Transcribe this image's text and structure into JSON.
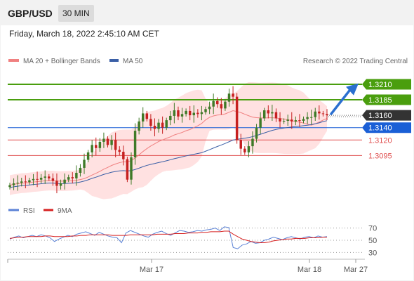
{
  "header": {
    "pair": "GBP/USD",
    "timeframe": "30 MIN"
  },
  "datetime": "Friday, March 18, 2022 2:45:10 AM CET",
  "legend": {
    "ma20": "MA 20 + Bollinger Bands",
    "ma50": "MA 50",
    "credit": "Research © 2022 Trading Central",
    "rsi": "RSI",
    "rsi_ma": "9MA"
  },
  "colors": {
    "resistance": "#4a9e0e",
    "current": "#333333",
    "ma50": "#3a5fa6",
    "pivot": "#1a5fd6",
    "support": "#e05050",
    "ma20": "#f08080",
    "band": "#ffdcdc",
    "arrow": "#2a6fd0",
    "candle_up": "#3f7a28",
    "candle_down": "#c62020",
    "rsi": "#5b82d6",
    "rsi_ma": "#d62020"
  },
  "chart_data": [
    {
      "type": "candlestick",
      "title": "GBP/USD",
      "timeframe": "30 MIN",
      "ylim": [
        1.3025,
        1.3235
      ],
      "x_ticks": [
        "Mar 17",
        "Mar 18",
        "Mar 27"
      ],
      "levels": [
        {
          "value": 1.321,
          "label": "1.3210",
          "kind": "resistance"
        },
        {
          "value": 1.3185,
          "label": "1.3185",
          "kind": "resistance"
        },
        {
          "value": 1.316,
          "label": "1.3160",
          "kind": "current"
        },
        {
          "value": 1.314,
          "label": "1.3140",
          "kind": "pivot"
        },
        {
          "value": 1.312,
          "label": "1.3120",
          "kind": "support"
        },
        {
          "value": 1.3095,
          "label": "1.3095",
          "kind": "support"
        }
      ],
      "closes": [
        1.3047,
        1.305,
        1.3051,
        1.3053,
        1.3052,
        1.3055,
        1.3057,
        1.3056,
        1.3059,
        1.3061,
        1.3058,
        1.3054,
        1.3046,
        1.305,
        1.3056,
        1.306,
        1.3058,
        1.3067,
        1.3075,
        1.3088,
        1.31,
        1.3112,
        1.3107,
        1.3117,
        1.3122,
        1.3112,
        1.312,
        1.3104,
        1.3101,
        1.3089,
        1.3056,
        1.3092,
        1.3135,
        1.315,
        1.3163,
        1.3154,
        1.3143,
        1.3138,
        1.3148,
        1.314,
        1.3152,
        1.3159,
        1.3168,
        1.3158,
        1.3162,
        1.3167,
        1.316,
        1.3164,
        1.3162,
        1.3165,
        1.317,
        1.3174,
        1.3183,
        1.3178,
        1.3171,
        1.3182,
        1.3195,
        1.319,
        1.312,
        1.3106,
        1.31,
        1.311,
        1.3122,
        1.314,
        1.3155,
        1.3168,
        1.3163,
        1.3165,
        1.3155,
        1.315,
        1.3151,
        1.3153,
        1.315,
        1.3152,
        1.3151,
        1.3154,
        1.3157,
        1.3157,
        1.3166,
        1.3163,
        1.3162,
        1.316
      ]
    },
    {
      "type": "line",
      "title": "RSI",
      "ylim": [
        20,
        80
      ],
      "y_ticks": [
        70,
        50,
        30
      ],
      "series": [
        {
          "name": "RSI",
          "values": [
            52,
            55,
            57,
            54,
            56,
            58,
            56,
            59,
            57,
            54,
            48,
            52,
            55,
            58,
            56,
            60,
            62,
            64,
            61,
            58,
            63,
            60,
            57,
            55,
            54,
            46,
            62,
            66,
            63,
            60,
            57,
            55,
            60,
            63,
            65,
            61,
            58,
            62,
            66,
            65,
            63,
            64,
            66,
            65,
            67,
            68,
            70,
            66,
            72,
            71,
            38,
            36,
            42,
            44,
            48,
            45,
            46,
            50,
            52,
            55,
            53,
            51,
            54,
            56,
            54,
            52,
            55,
            56,
            54,
            57,
            55,
            56
          ]
        },
        {
          "name": "9MA",
          "values": [
            53,
            54,
            55,
            55,
            56,
            56,
            56,
            56,
            57,
            57,
            56,
            56,
            56,
            56,
            57,
            57,
            58,
            58,
            59,
            59,
            59,
            59,
            59,
            58,
            58,
            58,
            58,
            59,
            59,
            59,
            59,
            59,
            59,
            60,
            60,
            60,
            60,
            61,
            61,
            61,
            62,
            62,
            62,
            63,
            63,
            64,
            64,
            64,
            65,
            65,
            60,
            56,
            52,
            50,
            48,
            47,
            46,
            46,
            47,
            49,
            50,
            51,
            52,
            52,
            53,
            53,
            53,
            54,
            54,
            54,
            55,
            55
          ]
        }
      ]
    }
  ]
}
